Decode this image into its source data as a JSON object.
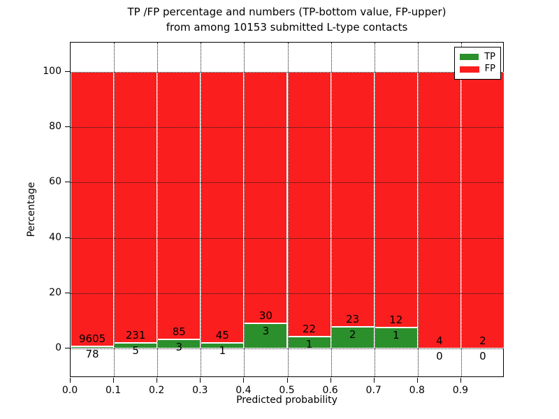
{
  "title": {
    "line1": "TP /FP percentage and numbers (TP-bottom value, FP-upper)",
    "line2": "from among 10153 submitted L-type contacts"
  },
  "axes": {
    "xlabel": "Predicted probability",
    "ylabel": "Percentage",
    "x_tick_labels": [
      "0.0",
      "0.1",
      "0.2",
      "0.3",
      "0.4",
      "0.5",
      "0.6",
      "0.7",
      "0.8",
      "0.9"
    ],
    "y_tick_labels": [
      "0",
      "20",
      "40",
      "60",
      "80",
      "100"
    ],
    "y_tick_values": [
      0,
      20,
      40,
      60,
      80,
      100
    ],
    "xlim": [
      0.0,
      1.0
    ],
    "ylim": [
      -10.5,
      110.5
    ],
    "grid": "dotted"
  },
  "legend": {
    "position": "upper-right",
    "entries": [
      {
        "label": "TP",
        "color": "#2b8f2b"
      },
      {
        "label": "FP",
        "color": "#fa1e1e"
      }
    ]
  },
  "chart_data": {
    "type": "bar",
    "stacked": true,
    "normalized": "each bin stacks to 100 percent",
    "bin_width": 0.1,
    "bin_starts": [
      0.0,
      0.1,
      0.2,
      0.3,
      0.4,
      0.5,
      0.6,
      0.7,
      0.8,
      0.9
    ],
    "total_submitted": 10153,
    "series": [
      {
        "name": "TP",
        "color": "#2b8f2b",
        "counts": [
          78,
          5,
          3,
          1,
          3,
          1,
          2,
          1,
          0,
          0
        ]
      },
      {
        "name": "FP",
        "color": "#fa1e1e",
        "counts": [
          9605,
          231,
          85,
          45,
          30,
          22,
          23,
          12,
          4,
          2
        ]
      }
    ],
    "tp_percent": [
      0.81,
      2.12,
      3.41,
      2.17,
      9.09,
      4.35,
      8.0,
      7.69,
      0.0,
      0.0
    ],
    "fp_percent": [
      99.19,
      97.88,
      96.59,
      97.83,
      90.91,
      95.65,
      92.0,
      92.31,
      100.0,
      100.0
    ]
  }
}
